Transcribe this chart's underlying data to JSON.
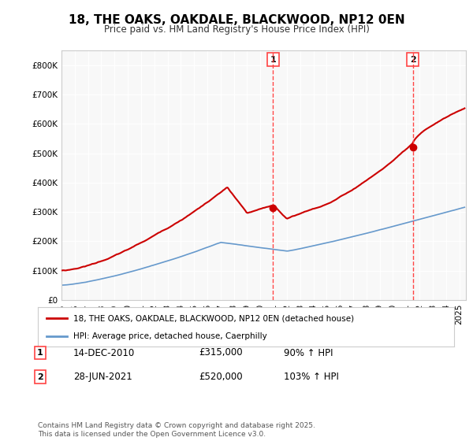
{
  "title": "18, THE OAKS, OAKDALE, BLACKWOOD, NP12 0EN",
  "subtitle": "Price paid vs. HM Land Registry's House Price Index (HPI)",
  "footer": "Contains HM Land Registry data © Crown copyright and database right 2025.\nThis data is licensed under the Open Government Licence v3.0.",
  "legend_entries": [
    "18, THE OAKS, OAKDALE, BLACKWOOD, NP12 0EN (detached house)",
    "HPI: Average price, detached house, Caerphilly"
  ],
  "sale_labels": [
    {
      "num": "1",
      "date": "14-DEC-2010",
      "price": "£315,000",
      "hpi": "90% ↑ HPI"
    },
    {
      "num": "2",
      "date": "28-JUN-2021",
      "price": "£520,000",
      "hpi": "103% ↑ HPI"
    }
  ],
  "vline1_x": 2010.96,
  "vline2_x": 2021.49,
  "red_color": "#cc0000",
  "blue_color": "#6699cc",
  "vline_color": "#ff4444",
  "background_color": "#f8f8f8",
  "ylim": [
    0,
    850000
  ],
  "xlim_start": 1995,
  "xlim_end": 2025.5
}
